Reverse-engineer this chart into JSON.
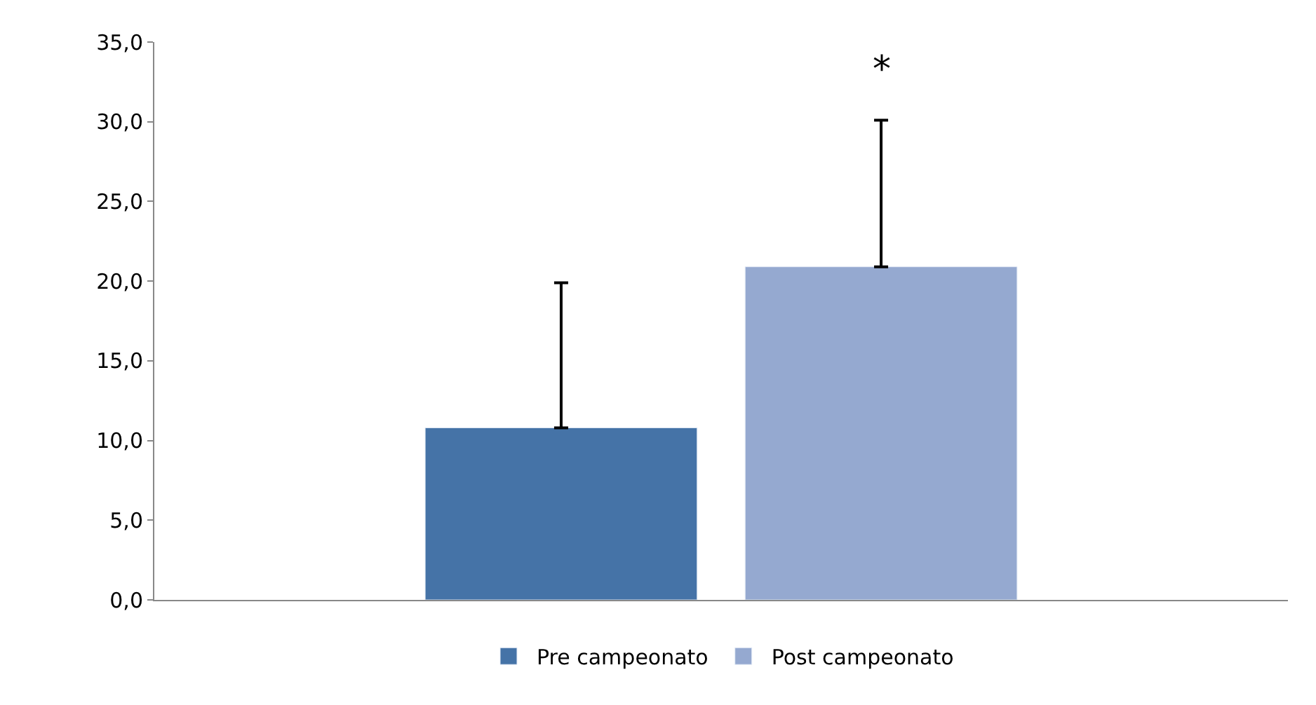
{
  "chart_data": {
    "type": "bar",
    "categories": [
      null
    ],
    "series": [
      {
        "name": "Pre campeonato",
        "color": "#4573a7",
        "values": [
          10.8
        ],
        "errors": [
          [
            10.8,
            19.9
          ]
        ]
      },
      {
        "name": "Post campeonato",
        "color": "#95a9d0",
        "values": [
          20.9
        ],
        "errors": [
          [
            20.9,
            30.1
          ]
        ]
      }
    ],
    "ylim": [
      0,
      35
    ],
    "yticks": [
      {
        "value": 0,
        "label": "0,0"
      },
      {
        "value": 5,
        "label": "5,0"
      },
      {
        "value": 10,
        "label": "10,0"
      },
      {
        "value": 15,
        "label": "15,0"
      },
      {
        "value": 20,
        "label": "20,0"
      },
      {
        "value": 25,
        "label": "25,0"
      },
      {
        "value": 30,
        "label": "30,0"
      },
      {
        "value": 35,
        "label": "35,0"
      }
    ],
    "annotations": [
      "*"
    ],
    "legend": "bottom"
  }
}
